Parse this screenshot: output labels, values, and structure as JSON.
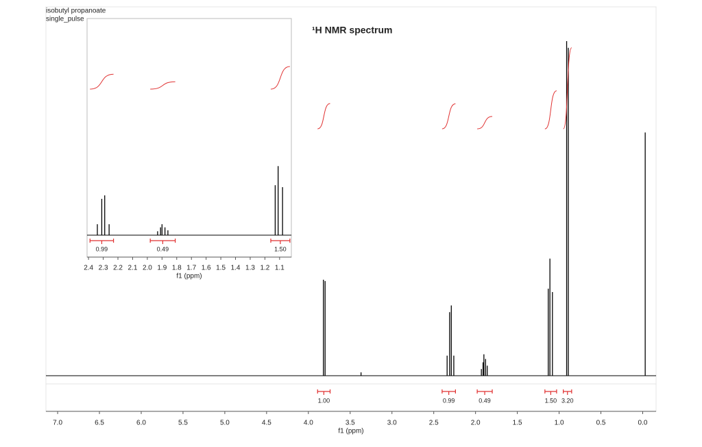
{
  "chart_data": [
    {
      "type": "spectrum",
      "title": "¹H NMR spectrum",
      "annotations": [
        "isobutyl propanoate",
        "single_pulse"
      ],
      "xlabel": "f1 (ppm)",
      "xlim": [
        7.14,
        -0.16
      ],
      "ylim": [
        0,
        100
      ],
      "color": "#000000",
      "integral_color": "#e03030",
      "xticks": [
        {
          "value": 7,
          "label": "7.0"
        },
        6.5,
        {
          "value": 6,
          "label": "6.0"
        },
        5.5,
        {
          "value": 5,
          "label": "5.0"
        },
        4.5,
        {
          "value": 4,
          "label": "4.0"
        },
        3.5,
        {
          "value": 3,
          "label": "3.0"
        },
        2.5,
        {
          "value": 2,
          "label": "2.0"
        },
        1.5,
        {
          "value": 1,
          "label": "1.0"
        },
        0.5,
        {
          "value": 0,
          "label": "0.0"
        }
      ],
      "peaks": {
        "x": [
          3.82,
          3.8,
          3.37,
          2.34,
          2.31,
          2.29,
          2.26,
          1.93,
          1.91,
          1.9,
          1.88,
          1.86,
          1.13,
          1.11,
          1.08,
          0.91,
          0.89,
          -0.03
        ],
        "values": [
          28.7,
          28.3,
          1,
          6,
          19,
          21,
          6,
          2,
          4,
          6.4,
          5,
          3,
          26,
          35,
          25,
          100,
          98,
          72.7
        ]
      },
      "integrals": {
        "ranges": [
          [
            3.89,
            3.74
          ],
          [
            2.4,
            2.24
          ],
          [
            1.98,
            1.8
          ],
          [
            1.17,
            1.03
          ],
          [
            0.95,
            0.85
          ]
        ],
        "values": [
          1,
          0.99,
          0.49,
          1.5,
          3.2
        ],
        "value_labels": [
          "1.00",
          "0.99",
          "0.49",
          "1.50",
          "3.20"
        ]
      }
    },
    {
      "type": "spectrum",
      "xlabel": "f1 (ppm)",
      "xlim": [
        2.41,
        1.02
      ],
      "ylim": [
        0,
        110
      ],
      "color": "#000000",
      "integral_color": "#e03030",
      "xticks": [
        2.4,
        2.3,
        2.2,
        2.1,
        {
          "value": 2,
          "label": "2.0"
        },
        1.9,
        1.8,
        1.7,
        1.6,
        1.5,
        1.4,
        1.3,
        1.2,
        1.1
      ],
      "peaks": {
        "x": [
          2.34,
          2.31,
          2.29,
          2.26,
          1.93,
          1.91,
          1.9,
          1.88,
          1.86,
          1.13,
          1.11,
          1.08
        ],
        "values": [
          5.6,
          18.6,
          20.4,
          5.6,
          2,
          4,
          5.6,
          4,
          2.5,
          25.6,
          35.4,
          24.6
        ]
      },
      "integrals": {
        "ranges": [
          [
            2.39,
            2.23
          ],
          [
            1.98,
            1.81
          ],
          [
            1.16,
            1.03
          ]
        ],
        "values": [
          0.99,
          0.49,
          1.5
        ],
        "value_labels": [
          "0.99",
          "0.49",
          "1.50"
        ]
      }
    }
  ]
}
